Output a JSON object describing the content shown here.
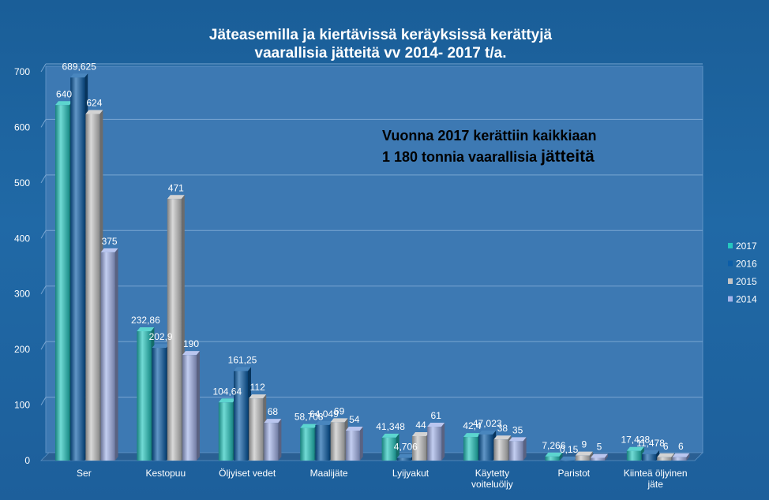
{
  "chart_data": {
    "type": "bar",
    "title_lines": [
      "Jäteasemilla  ja kiertävissä keräyksissä kerättyjä",
      "vaarallisia jätteitä vv 2014- 2017 t/a."
    ],
    "annotation": {
      "line1": "Vuonna 2017 kerättiin kaikkiaan",
      "line2_prefix": "1 180 tonnia vaarallisia ",
      "line2_emph": "jätteitä"
    },
    "categories": [
      [
        "Ser"
      ],
      [
        "Kestopuu"
      ],
      [
        "Öljyiset vedet"
      ],
      [
        "Maalijäte"
      ],
      [
        "Lyijyakut"
      ],
      [
        "Käytetty",
        "voiteluöljy"
      ],
      [
        "Paristot"
      ],
      [
        "Kiinteä öljyinen",
        "jäte"
      ]
    ],
    "series": [
      {
        "name": "2017",
        "values": [
          640,
          232.86,
          104.64,
          58.708,
          41.348,
          42.4,
          7.266,
          17.428
        ],
        "labels": [
          "640",
          "232,86",
          "104,64",
          "58,708",
          "41,348",
          "42,4",
          "7,266",
          "17,428"
        ],
        "color": "#25c7bf"
      },
      {
        "name": "2016",
        "values": [
          689.625,
          202.9,
          161.25,
          64.049,
          4.706,
          47.023,
          0.15,
          11.478
        ],
        "labels": [
          "689,625",
          "202,9",
          "161,25",
          "64,049",
          "4,706",
          "47,023",
          "0,15",
          "11,478"
        ],
        "color": "#0c5ea8"
      },
      {
        "name": "2015",
        "values": [
          624,
          471,
          112,
          69,
          44,
          38,
          9,
          6
        ],
        "labels": [
          "624",
          "471",
          "112",
          "69",
          "44",
          "38",
          "9",
          "6"
        ],
        "color": "#c4c4c4"
      },
      {
        "name": "2014",
        "values": [
          375,
          190,
          68,
          54,
          61,
          35,
          5,
          6
        ],
        "labels": [
          "375",
          "190",
          "68",
          "54",
          "61",
          "35",
          "5",
          "6"
        ],
        "color": "#a3b3ea"
      }
    ],
    "ylim": [
      0,
      700
    ],
    "yticks": [
      0,
      100,
      200,
      300,
      400,
      500,
      600,
      700
    ],
    "grid": true,
    "legend_position": "right",
    "legend_order": [
      "2017",
      "2016",
      "2015",
      "2014"
    ]
  }
}
